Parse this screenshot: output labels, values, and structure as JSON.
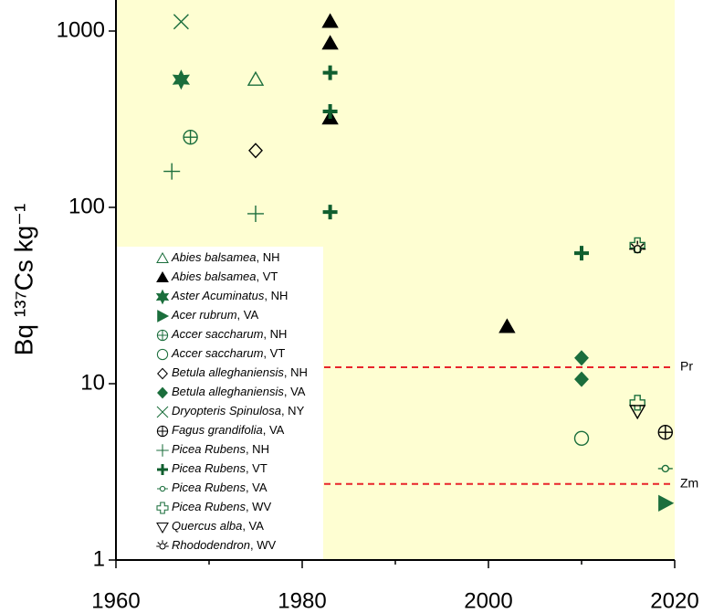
{
  "chart_data": {
    "type": "scatter",
    "ylabel": "Bq ¹³⁷Cs kg⁻¹",
    "xlim": [
      1960,
      2020
    ],
    "xticks": [
      1960,
      1980,
      2000,
      2020
    ],
    "xticks_minor": [
      1970,
      1990,
      2010
    ],
    "ylim": [
      1,
      1500
    ],
    "yticks": [
      1,
      10,
      100,
      1000
    ],
    "log_y": true,
    "background": "#fefed2",
    "legend": "lower left",
    "reference_lines": [
      {
        "value": 12.4,
        "label": "Pr",
        "color": "#e8242a"
      },
      {
        "value": 2.7,
        "label": "Zm",
        "color": "#e8242a"
      }
    ],
    "series": [
      {
        "name": "Abies balsamea, NH",
        "marker": "triangle",
        "filled": false,
        "color": "#1b6e3c",
        "x": [
          1975
        ],
        "values": [
          530
        ]
      },
      {
        "name": "Abies balsamea, VT",
        "marker": "triangle",
        "filled": true,
        "color": "#000000",
        "x": [
          1983,
          1983,
          1983,
          2002
        ],
        "values": [
          1130,
          850,
          320,
          21
        ]
      },
      {
        "name": "Aster Acuminatus, NH",
        "marker": "star",
        "filled": true,
        "color": "#1b6e3c",
        "x": [
          1967
        ],
        "values": [
          530
        ]
      },
      {
        "name": "Acer rubrum, VA",
        "marker": "triangle-right",
        "filled": true,
        "color": "#1b6e3c",
        "x": [
          2019
        ],
        "values": [
          2.1
        ]
      },
      {
        "name": "Accer saccharum, NH",
        "marker": "circle-plus",
        "filled": false,
        "color": "#1b6e3c",
        "x": [
          1968
        ],
        "values": [
          250
        ]
      },
      {
        "name": "Accer saccharum, VT",
        "marker": "circle",
        "filled": false,
        "color": "#1b6e3c",
        "x": [
          2010
        ],
        "values": [
          4.9
        ]
      },
      {
        "name": "Betula alleghaniensis, NH",
        "marker": "diamond",
        "filled": false,
        "color": "#000000",
        "x": [
          1975
        ],
        "values": [
          210
        ]
      },
      {
        "name": "Betula alleghaniensis, VA",
        "marker": "diamond",
        "filled": true,
        "color": "#1b6e3c",
        "x": [
          2010,
          2010
        ],
        "values": [
          14,
          10.6
        ]
      },
      {
        "name": "Dryopteris Spinulosa, NY",
        "marker": "x",
        "filled": false,
        "color": "#1b6e3c",
        "x": [
          1967
        ],
        "values": [
          1130
        ]
      },
      {
        "name": "Fagus grandifolia, VA",
        "marker": "circle-plus",
        "filled": false,
        "color": "#000000",
        "x": [
          2019
        ],
        "values": [
          5.3
        ]
      },
      {
        "name": "Picea Rubens, NH",
        "marker": "plus-thin",
        "filled": false,
        "color": "#1b6e3c",
        "x": [
          1966,
          1975
        ],
        "values": [
          160,
          92
        ]
      },
      {
        "name": "Picea Rubens, VT",
        "marker": "plus-thick",
        "filled": true,
        "color": "#0f5e2e",
        "x": [
          1983,
          1983,
          1983,
          2010
        ],
        "values": [
          580,
          350,
          94,
          55
        ]
      },
      {
        "name": "Picea Rubens, VA",
        "marker": "circle-line",
        "filled": false,
        "color": "#1b6e3c",
        "x": [
          2019
        ],
        "values": [
          3.3
        ]
      },
      {
        "name": "Picea Rubens, WV",
        "marker": "cross-open",
        "filled": false,
        "color": "#1b6e3c",
        "x": [
          2016,
          2016
        ],
        "values": [
          61,
          7.8
        ]
      },
      {
        "name": "Quercus alba, VA",
        "marker": "triangle-down",
        "filled": false,
        "color": "#000000",
        "x": [
          2016
        ],
        "values": [
          7.0
        ]
      },
      {
        "name": "Rhododendron, WV",
        "marker": "sun",
        "filled": false,
        "color": "#000000",
        "x": [
          2016
        ],
        "values": [
          58
        ]
      }
    ]
  }
}
